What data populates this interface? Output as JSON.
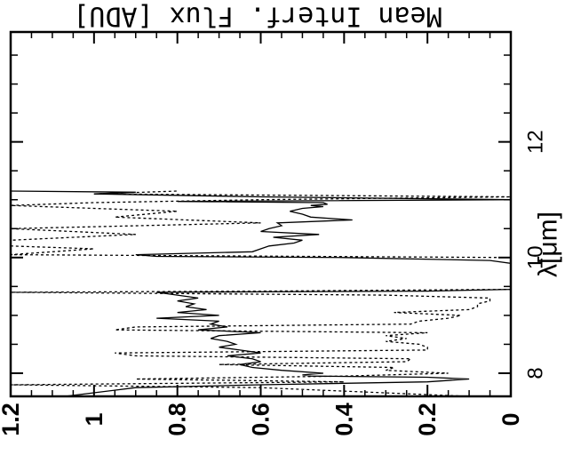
{
  "chart_data": {
    "type": "line",
    "orientation": "rotated 90 degrees",
    "title": "Mean Interf. Flux [ADU]",
    "xlabel": "λ[μm]",
    "xlim": [
      7.6,
      13.9
    ],
    "ylim": [
      0,
      1.2
    ],
    "x_ticks": [
      {
        "value": 8,
        "label": "8"
      },
      {
        "value": 10,
        "label": "10"
      },
      {
        "value": 12,
        "label": "12"
      }
    ],
    "y_ticks": [
      {
        "value": 0,
        "label": "0"
      },
      {
        "value": 0.2,
        "label": "0.2"
      },
      {
        "value": 0.4,
        "label": "0.4"
      },
      {
        "value": 0.6,
        "label": "0.6"
      },
      {
        "value": 0.8,
        "label": "0.8"
      },
      {
        "value": 1.0,
        "label": "1"
      },
      {
        "value": 1.2,
        "label": "1.2"
      }
    ],
    "series": [
      {
        "style": "solid",
        "x": [
          7.6,
          7.75,
          7.8,
          7.85,
          7.9,
          7.93,
          7.95,
          7.97,
          8.0,
          8.05,
          8.1,
          8.15,
          8.2,
          8.25,
          8.3,
          8.35,
          8.4,
          8.45,
          8.5,
          8.55,
          8.6,
          8.65,
          8.7,
          8.75,
          8.8,
          8.85,
          8.9,
          8.95,
          9.0,
          9.05,
          9.1,
          9.15,
          9.2,
          9.25,
          9.3,
          9.35,
          9.4,
          9.42,
          9.45,
          9.5,
          9.6,
          9.7,
          9.8,
          9.9,
          9.95,
          10.0,
          10.02,
          10.05,
          10.1,
          10.15,
          10.2,
          10.25,
          10.3,
          10.35,
          10.4,
          10.45,
          10.5,
          10.55,
          10.6,
          10.65,
          10.7,
          10.75,
          10.8,
          10.85,
          10.88,
          10.9,
          10.92,
          10.95,
          10.97,
          11.0,
          11.05,
          11.1,
          11.13,
          11.15
        ],
        "y": [
          1.07,
          0.9,
          0.6,
          0.2,
          0.1,
          0.2,
          0.48,
          0.5,
          0.45,
          0.55,
          0.62,
          0.65,
          0.6,
          0.62,
          0.68,
          0.6,
          0.65,
          0.7,
          0.66,
          0.68,
          0.72,
          0.7,
          0.6,
          0.75,
          0.68,
          0.72,
          0.7,
          0.85,
          0.7,
          0.8,
          0.73,
          0.78,
          0.76,
          0.8,
          0.75,
          0.8,
          0.85,
          0.2,
          0.0,
          0.0,
          0.0,
          0.0,
          0.0,
          0.0,
          0.05,
          0.4,
          0.85,
          0.9,
          0.62,
          0.6,
          0.58,
          0.52,
          0.5,
          0.57,
          0.46,
          0.6,
          0.58,
          0.55,
          0.56,
          0.38,
          0.48,
          0.5,
          0.53,
          0.5,
          0.45,
          0.48,
          0.44,
          0.45,
          0.8,
          0.0,
          0.6,
          1.0,
          0.9,
          1.2
        ]
      },
      {
        "style": "dotted",
        "x": [
          7.6,
          7.75,
          7.8,
          7.85,
          7.9,
          7.95,
          8.0,
          8.05,
          8.1,
          8.15,
          8.2,
          8.25,
          8.3,
          8.35,
          8.4,
          8.45,
          8.5,
          8.55,
          8.6,
          8.65,
          8.7,
          8.75,
          8.8,
          8.85,
          8.9,
          8.95,
          9.0,
          9.05,
          9.1,
          9.15,
          9.2,
          9.25,
          9.3,
          9.35,
          9.4,
          9.42,
          9.45,
          9.5,
          9.6,
          9.8,
          9.95,
          10.0,
          10.05,
          10.1,
          10.15,
          10.2,
          10.3,
          10.4,
          10.5,
          10.6,
          10.7,
          10.8,
          10.85,
          10.9,
          10.95,
          11.0,
          11.05,
          11.1,
          11.15
        ],
        "y": [
          0.1,
          0.6,
          1.2,
          0.4,
          0.9,
          0.4,
          0.15,
          0.3,
          0.28,
          0.7,
          0.25,
          0.24,
          0.9,
          0.95,
          0.2,
          0.2,
          0.22,
          0.3,
          0.25,
          0.3,
          0.2,
          0.95,
          0.9,
          0.24,
          0.22,
          0.15,
          0.12,
          0.28,
          0.1,
          0.08,
          0.08,
          0.05,
          0.05,
          0.3,
          1.2,
          0.6,
          0.0,
          0.0,
          0.0,
          0.0,
          0.0,
          0.0,
          1.2,
          1.1,
          1.0,
          1.2,
          1.2,
          0.9,
          1.2,
          0.6,
          0.95,
          0.8,
          1.0,
          1.2,
          1.0,
          0.6,
          0.0,
          1.0,
          0.8
        ]
      }
    ]
  }
}
